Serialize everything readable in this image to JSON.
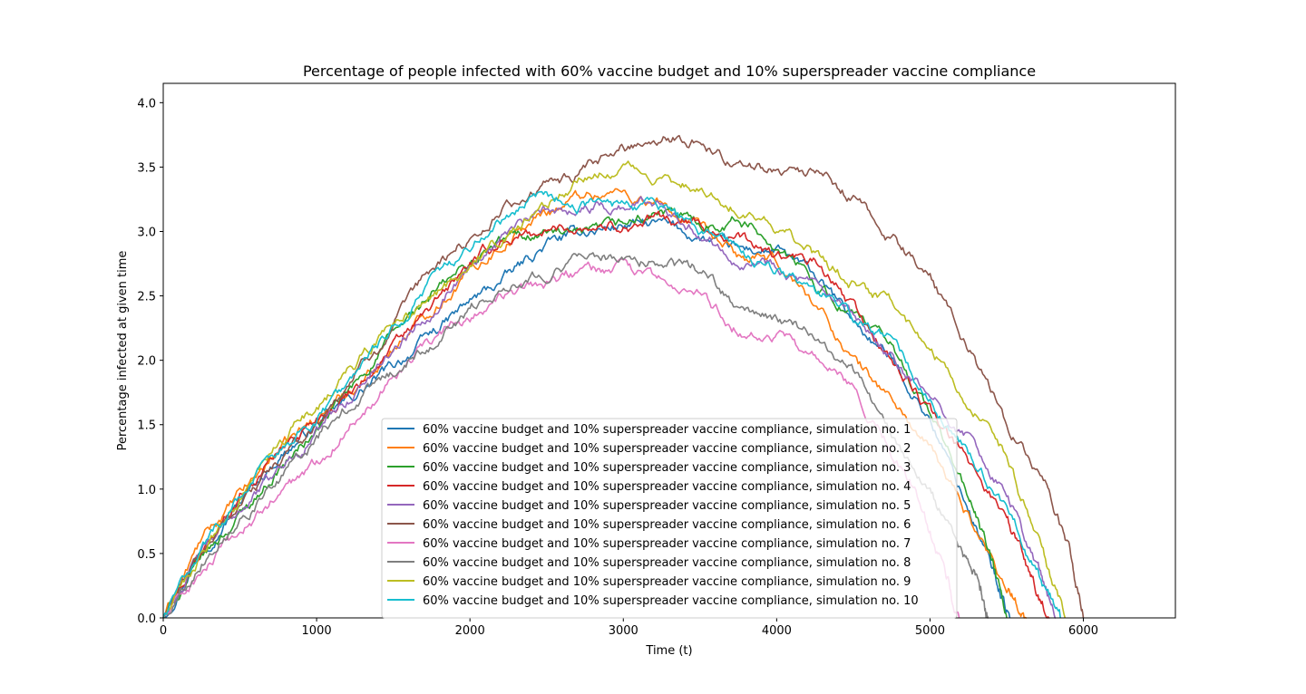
{
  "chart_data": {
    "type": "line",
    "title": "Percentage of people infected with 60% vaccine budget and 10% superspreader vaccine compliance",
    "xlabel": "Time (t)",
    "ylabel": "Percentage infected at given time",
    "xlim": [
      0,
      6600
    ],
    "ylim": [
      0,
      4.15
    ],
    "xticks": [
      0,
      1000,
      2000,
      3000,
      4000,
      5000,
      6000
    ],
    "yticks": [
      0.0,
      0.5,
      1.0,
      1.5,
      2.0,
      2.5,
      3.0,
      3.5,
      4.0
    ],
    "xtick_labels": [
      "0",
      "1000",
      "2000",
      "3000",
      "4000",
      "5000",
      "6000"
    ],
    "ytick_labels": [
      "0.0",
      "0.5",
      "1.0",
      "1.5",
      "2.0",
      "2.5",
      "3.0",
      "3.5",
      "4.0"
    ],
    "grid": false,
    "legend_position": "lower-center",
    "series": [
      {
        "name": "60% vaccine budget and 10% superspreader vaccine compliance, simulation no. 1",
        "color": "#1f77b4",
        "x": [
          0,
          250,
          500,
          750,
          1000,
          1250,
          1500,
          1750,
          2000,
          2250,
          2500,
          2750,
          3000,
          3250,
          3500,
          3750,
          4000,
          4250,
          4500,
          4750,
          5000,
          5250,
          5400,
          5520
        ],
        "y": [
          0,
          0.55,
          0.9,
          1.25,
          1.5,
          1.72,
          1.95,
          2.2,
          2.45,
          2.65,
          2.9,
          3.0,
          3.05,
          3.05,
          2.95,
          2.85,
          2.85,
          2.65,
          2.3,
          2.0,
          1.55,
          0.85,
          0.4,
          0
        ]
      },
      {
        "name": "60% vaccine budget and 10% superspreader vaccine compliance, simulation no. 2",
        "color": "#ff7f0e",
        "x": [
          0,
          250,
          500,
          750,
          1000,
          1250,
          1500,
          1750,
          2000,
          2250,
          2500,
          2750,
          3000,
          3250,
          3500,
          3750,
          4000,
          4250,
          4500,
          4750,
          5000,
          5250,
          5500,
          5630
        ],
        "y": [
          0,
          0.6,
          0.95,
          1.3,
          1.55,
          1.8,
          2.1,
          2.4,
          2.7,
          2.95,
          3.15,
          3.3,
          3.3,
          3.2,
          3.0,
          2.8,
          2.75,
          2.45,
          2.0,
          1.7,
          1.3,
          0.8,
          0.25,
          0
        ]
      },
      {
        "name": "60% vaccine budget and 10% superspreader vaccine compliance, simulation no. 3",
        "color": "#2ca02c",
        "x": [
          0,
          250,
          500,
          750,
          1000,
          1250,
          1500,
          1750,
          2000,
          2250,
          2500,
          2750,
          3000,
          3250,
          3500,
          3750,
          4000,
          4250,
          4500,
          4750,
          5000,
          5250,
          5400,
          5500
        ],
        "y": [
          0,
          0.45,
          0.8,
          1.15,
          1.45,
          1.8,
          2.2,
          2.5,
          2.75,
          2.95,
          3.0,
          2.95,
          3.05,
          3.15,
          3.05,
          3.1,
          2.9,
          2.6,
          2.35,
          2.1,
          1.6,
          0.95,
          0.45,
          0
        ]
      },
      {
        "name": "60% vaccine budget and 10% superspreader vaccine compliance, simulation no. 4",
        "color": "#d62728",
        "x": [
          0,
          250,
          500,
          750,
          1000,
          1250,
          1500,
          1750,
          2000,
          2250,
          2500,
          2750,
          3000,
          3250,
          3500,
          3750,
          4000,
          4250,
          4500,
          4750,
          5000,
          5250,
          5500,
          5650,
          5780
        ],
        "y": [
          0,
          0.5,
          0.95,
          1.3,
          1.55,
          1.8,
          2.1,
          2.4,
          2.75,
          2.95,
          3.0,
          3.05,
          3.05,
          3.1,
          3.05,
          2.95,
          2.8,
          2.75,
          2.4,
          2.0,
          1.6,
          1.2,
          0.8,
          0.35,
          0
        ]
      },
      {
        "name": "60% vaccine budget and 10% superspreader vaccine compliance, simulation no. 5",
        "color": "#9467bd",
        "x": [
          0,
          250,
          500,
          750,
          1000,
          1250,
          1500,
          1750,
          2000,
          2250,
          2500,
          2750,
          3000,
          3250,
          3500,
          3750,
          4000,
          4250,
          4500,
          4750,
          5000,
          5250,
          5500,
          5700,
          5820
        ],
        "y": [
          0,
          0.5,
          0.85,
          1.15,
          1.45,
          1.75,
          2.1,
          2.4,
          2.75,
          3.0,
          3.15,
          3.2,
          3.2,
          3.25,
          3.0,
          2.8,
          2.75,
          2.55,
          2.3,
          2.0,
          1.7,
          1.4,
          0.95,
          0.4,
          0
        ]
      },
      {
        "name": "60% vaccine budget and 10% superspreader vaccine compliance, simulation no. 6",
        "color": "#8c564b",
        "x": [
          0,
          250,
          500,
          750,
          1000,
          1250,
          1500,
          1750,
          2000,
          2250,
          2500,
          2750,
          3000,
          3250,
          3500,
          3750,
          4000,
          4250,
          4500,
          4750,
          5000,
          5250,
          5500,
          5750,
          5900,
          6000
        ],
        "y": [
          0,
          0.5,
          0.9,
          1.2,
          1.5,
          1.9,
          2.25,
          2.7,
          2.95,
          3.2,
          3.35,
          3.45,
          3.65,
          3.75,
          3.7,
          3.5,
          3.5,
          3.45,
          3.25,
          2.95,
          2.65,
          2.1,
          1.5,
          1.05,
          0.55,
          0
        ]
      },
      {
        "name": "60% vaccine budget and 10% superspreader vaccine compliance, simulation no. 7",
        "color": "#e377c2",
        "x": [
          0,
          250,
          500,
          750,
          1000,
          1250,
          1500,
          1750,
          2000,
          2250,
          2500,
          2750,
          3000,
          3250,
          3500,
          3750,
          4000,
          4250,
          4500,
          4750,
          4950,
          5100,
          5190
        ],
        "y": [
          0,
          0.35,
          0.65,
          0.95,
          1.2,
          1.55,
          1.9,
          2.15,
          2.35,
          2.5,
          2.6,
          2.7,
          2.7,
          2.6,
          2.5,
          2.25,
          2.2,
          2.0,
          1.75,
          1.3,
          0.85,
          0.35,
          0
        ]
      },
      {
        "name": "60% vaccine budget and 10% superspreader vaccine compliance, simulation no. 8",
        "color": "#7f7f7f",
        "x": [
          0,
          250,
          500,
          750,
          1000,
          1250,
          1500,
          1750,
          2000,
          2250,
          2500,
          2750,
          3000,
          3250,
          3500,
          3750,
          4000,
          4250,
          4500,
          4750,
          5000,
          5200,
          5320,
          5380
        ],
        "y": [
          0,
          0.45,
          0.8,
          1.05,
          1.4,
          1.7,
          1.9,
          2.15,
          2.4,
          2.6,
          2.7,
          2.8,
          2.8,
          2.75,
          2.7,
          2.4,
          2.3,
          2.2,
          1.9,
          1.4,
          0.95,
          0.55,
          0.25,
          0
        ]
      },
      {
        "name": "60% vaccine budget and 10% superspreader vaccine compliance, simulation no. 9",
        "color": "#bcbd22",
        "x": [
          0,
          250,
          500,
          750,
          1000,
          1250,
          1500,
          1750,
          2000,
          2250,
          2500,
          2750,
          3000,
          3250,
          3500,
          3750,
          4000,
          4250,
          4500,
          4750,
          5000,
          5250,
          5500,
          5700,
          5880
        ],
        "y": [
          0,
          0.5,
          0.9,
          1.35,
          1.65,
          1.95,
          2.3,
          2.45,
          2.75,
          2.95,
          3.2,
          3.45,
          3.5,
          3.4,
          3.35,
          3.2,
          3.05,
          2.8,
          2.6,
          2.45,
          2.1,
          1.7,
          1.25,
          0.6,
          0
        ]
      },
      {
        "name": "60% vaccine budget and 10% superspreader vaccine compliance, simulation no. 10",
        "color": "#17becf",
        "x": [
          0,
          250,
          500,
          750,
          1000,
          1250,
          1500,
          1750,
          2000,
          2250,
          2500,
          2750,
          3000,
          3250,
          3500,
          3750,
          4000,
          4250,
          4500,
          4750,
          5000,
          5250,
          5500,
          5700,
          5850
        ],
        "y": [
          0,
          0.55,
          0.95,
          1.3,
          1.55,
          1.85,
          2.25,
          2.6,
          2.9,
          3.15,
          3.3,
          3.2,
          3.2,
          3.2,
          3.0,
          2.85,
          2.7,
          2.55,
          2.35,
          2.15,
          1.7,
          1.3,
          0.85,
          0.35,
          0
        ]
      }
    ]
  }
}
